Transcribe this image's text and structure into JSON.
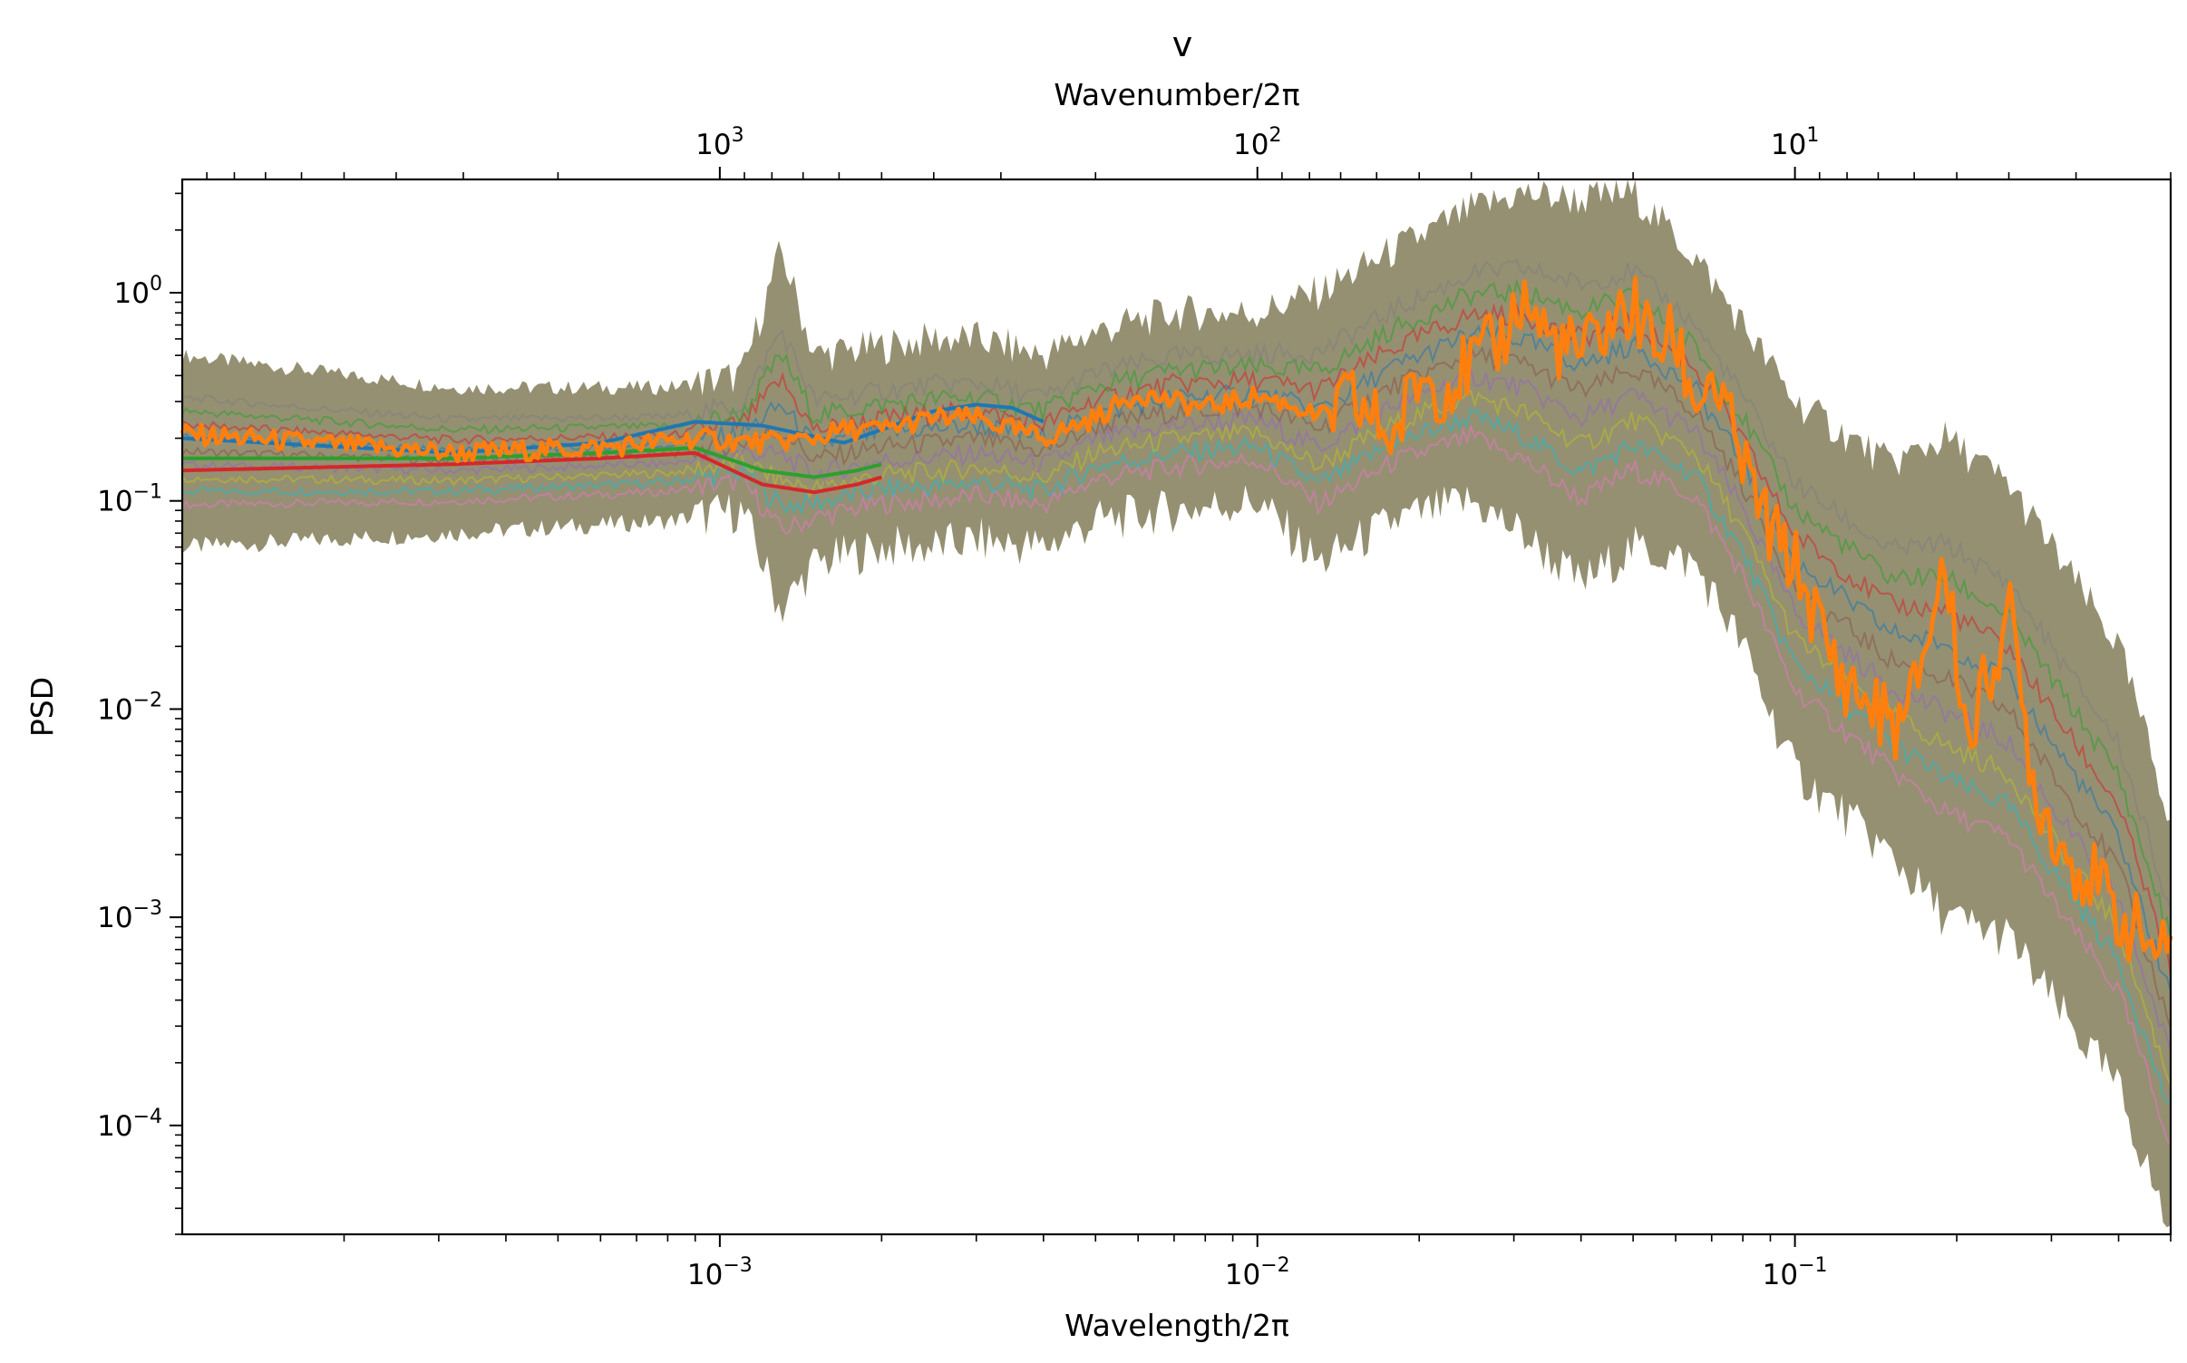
{
  "chart_data": {
    "type": "line",
    "title": "v",
    "xlabel": "Wavelength/2π",
    "xlabel_top": "Wavenumber/2π",
    "ylabel": "PSD",
    "xscale": "log",
    "yscale": "log",
    "xlim": [
      0.0001,
      0.5
    ],
    "ylim": [
      3e-05,
      3.5
    ],
    "grid": false,
    "x_ticks": [
      {
        "value": 0.001,
        "base": "10",
        "exp": "−3"
      },
      {
        "value": 0.01,
        "base": "10",
        "exp": "−2"
      },
      {
        "value": 0.1,
        "base": "10",
        "exp": "−1"
      }
    ],
    "top_ticks": [
      {
        "wavenumber": 1000,
        "base": "10",
        "exp": "3"
      },
      {
        "wavenumber": 100,
        "base": "10",
        "exp": "2"
      },
      {
        "wavenumber": 10,
        "base": "10",
        "exp": "1"
      }
    ],
    "y_ticks": [
      {
        "value": 1,
        "base": "10",
        "exp": "0"
      },
      {
        "value": 0.1,
        "base": "10",
        "exp": "−1"
      },
      {
        "value": 0.01,
        "base": "10",
        "exp": "−2"
      },
      {
        "value": 0.001,
        "base": "10",
        "exp": "−3"
      },
      {
        "value": 0.0001,
        "base": "10",
        "exp": "−4"
      }
    ],
    "ensemble_band": {
      "x": [
        0.0001,
        0.00032,
        0.0008,
        0.0011,
        0.0013,
        0.0015,
        0.002,
        0.0025,
        0.003,
        0.004,
        0.005,
        0.007,
        0.01,
        0.013,
        0.018,
        0.025,
        0.031,
        0.04,
        0.05,
        0.065,
        0.08,
        0.1,
        0.15,
        0.19,
        0.25,
        0.3,
        0.4,
        0.5
      ],
      "upper": [
        0.5,
        0.35,
        0.35,
        0.4,
        1.6,
        0.5,
        0.55,
        0.6,
        0.6,
        0.5,
        0.65,
        0.8,
        0.8,
        1.0,
        1.6,
        2.5,
        3.0,
        2.8,
        3.0,
        1.5,
        0.7,
        0.3,
        0.15,
        0.2,
        0.12,
        0.06,
        0.02,
        0.003
      ],
      "lower": [
        0.06,
        0.07,
        0.08,
        0.09,
        0.03,
        0.05,
        0.06,
        0.06,
        0.065,
        0.06,
        0.08,
        0.09,
        0.1,
        0.05,
        0.08,
        0.1,
        0.07,
        0.04,
        0.06,
        0.05,
        0.02,
        0.005,
        0.002,
        0.001,
        0.0008,
        0.0004,
        0.00015,
        3e-05
      ]
    },
    "series": [
      {
        "color": "#1f77b4",
        "x": [
          0.0001,
          0.00032,
          0.0006,
          0.0009,
          0.0012,
          0.0017,
          0.002,
          0.0025,
          0.003,
          0.0035,
          0.004
        ],
        "values": [
          0.2,
          0.17,
          0.19,
          0.24,
          0.23,
          0.19,
          0.22,
          0.27,
          0.29,
          0.28,
          0.24
        ]
      },
      {
        "color": "#d62728",
        "x": [
          0.0001,
          0.00032,
          0.0006,
          0.0009,
          0.0012,
          0.0015,
          0.0018,
          0.002
        ],
        "values": [
          0.14,
          0.15,
          0.16,
          0.17,
          0.12,
          0.11,
          0.12,
          0.13
        ]
      },
      {
        "color": "#2ca02c",
        "x": [
          0.0001,
          0.00032,
          0.0006,
          0.0009,
          0.0012,
          0.0015,
          0.0018,
          0.002
        ],
        "values": [
          0.16,
          0.16,
          0.17,
          0.18,
          0.14,
          0.13,
          0.14,
          0.15
        ]
      },
      {
        "color": "#ff7f0e",
        "x": [
          0.0001,
          0.00032,
          0.0006,
          0.0009,
          0.0012,
          0.0015,
          0.0017,
          0.002,
          0.0025,
          0.003,
          0.0035,
          0.004,
          0.005,
          0.006,
          0.007,
          0.008,
          0.009,
          0.01,
          0.012,
          0.013,
          0.015,
          0.018,
          0.02,
          0.022,
          0.025,
          0.028,
          0.031,
          0.035,
          0.04,
          0.045,
          0.05,
          0.055,
          0.06,
          0.065,
          0.07,
          0.08,
          0.09,
          0.1,
          0.12,
          0.14,
          0.16,
          0.19,
          0.21,
          0.25,
          0.28,
          0.32,
          0.36,
          0.4,
          0.45,
          0.5
        ],
        "values": [
          0.21,
          0.17,
          0.18,
          0.2,
          0.19,
          0.2,
          0.22,
          0.22,
          0.25,
          0.25,
          0.22,
          0.2,
          0.25,
          0.33,
          0.3,
          0.28,
          0.3,
          0.32,
          0.28,
          0.25,
          0.3,
          0.2,
          0.4,
          0.35,
          0.45,
          0.55,
          0.95,
          0.6,
          0.5,
          0.7,
          0.85,
          0.55,
          0.6,
          0.3,
          0.4,
          0.15,
          0.07,
          0.05,
          0.015,
          0.01,
          0.008,
          0.05,
          0.007,
          0.03,
          0.004,
          0.002,
          0.0015,
          0.001,
          0.0008,
          0.0006
        ]
      }
    ]
  }
}
